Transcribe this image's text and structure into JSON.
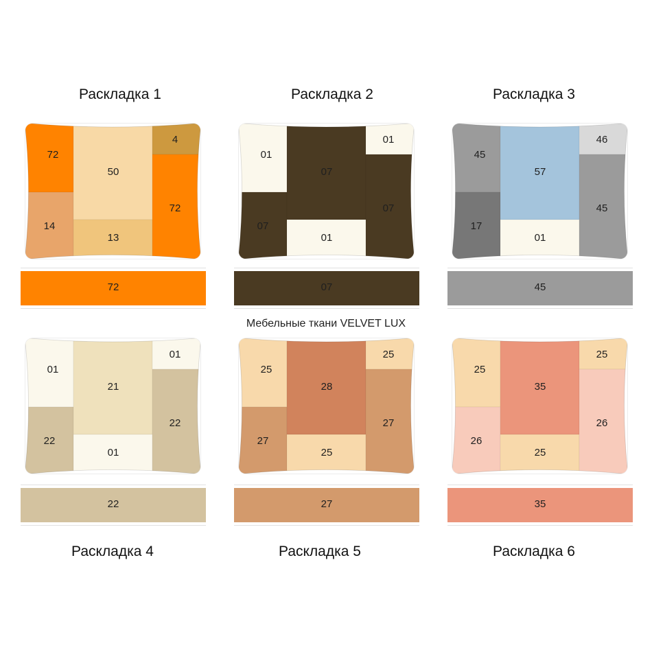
{
  "subtitle": "Мебельные ткани VELVET LUX",
  "layouts": [
    {
      "title": "Раскладка 1",
      "colors": {
        "72": "#ff8300",
        "50": "#f8d9a6",
        "4": "#cd993f",
        "14": "#e8a56a",
        "13": "#f0c57c"
      },
      "cells": {
        "left_top": "72",
        "left_bottom": "14",
        "center_top": "50",
        "center_bottom": "13",
        "right_top": "4",
        "right_bottom": "72"
      },
      "bolster": "72"
    },
    {
      "title": "Раскладка 2",
      "colors": {
        "01": "#fbf8ec",
        "07": "#4a3a22"
      },
      "cells": {
        "left_top": "01",
        "left_bottom": "07",
        "center_top": "07",
        "center_bottom": "01",
        "right_top": "01",
        "right_bottom": "07"
      },
      "bolster": "07"
    },
    {
      "title": "Раскладка 3",
      "colors": {
        "45": "#9b9b9b",
        "17": "#777777",
        "57": "#a4c4dc",
        "01": "#fbf8ec",
        "46": "#d9d9d9"
      },
      "cells": {
        "left_top": "45",
        "left_bottom": "17",
        "center_top": "57",
        "center_bottom": "01",
        "right_top": "46",
        "right_bottom": "45"
      },
      "bolster": "45"
    },
    {
      "title": "Раскладка 4",
      "colors": {
        "01": "#fbf8ec",
        "22": "#d3c29f",
        "21": "#efe1bc"
      },
      "cells": {
        "left_top": "01",
        "left_bottom": "22",
        "center_top": "21",
        "center_bottom": "01",
        "right_top": "01",
        "right_bottom": "22"
      },
      "bolster": "22"
    },
    {
      "title": "Раскладка 5",
      "colors": {
        "25": "#f8d9ab",
        "27": "#d39a6c",
        "28": "#d1835c"
      },
      "cells": {
        "left_top": "25",
        "left_bottom": "27",
        "center_top": "28",
        "center_bottom": "25",
        "right_top": "25",
        "right_bottom": "27"
      },
      "bolster": "27"
    },
    {
      "title": "Раскладка 6",
      "colors": {
        "25": "#f8d9ab",
        "26": "#f8cbbb",
        "35": "#eb957b"
      },
      "cells": {
        "left_top": "25",
        "left_bottom": "26",
        "center_top": "35",
        "center_bottom": "25",
        "right_top": "25",
        "right_bottom": "26"
      },
      "bolster": "35"
    }
  ]
}
